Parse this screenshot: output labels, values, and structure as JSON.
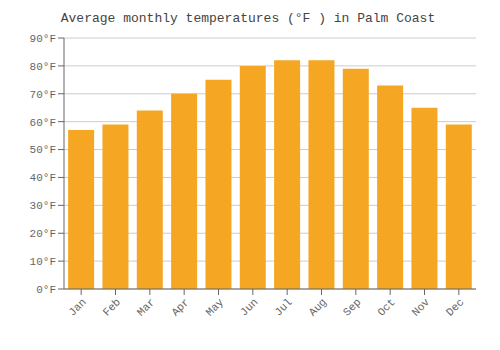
{
  "chart_data": {
    "type": "bar",
    "title": "Average monthly temperatures (°F ) in Palm Coast",
    "categories": [
      "Jan",
      "Feb",
      "Mar",
      "Apr",
      "May",
      "Jun",
      "Jul",
      "Aug",
      "Sep",
      "Oct",
      "Nov",
      "Dec"
    ],
    "values": [
      57,
      59,
      64,
      70,
      75,
      80,
      82,
      82,
      79,
      73,
      65,
      59
    ],
    "color": "#F5A623",
    "ylim": [
      0,
      90
    ],
    "yticks": [
      {
        "value": 0,
        "label": "0°F"
      },
      {
        "value": 10,
        "label": "10°F"
      },
      {
        "value": 20,
        "label": "20°F"
      },
      {
        "value": 30,
        "label": "30°F"
      },
      {
        "value": 40,
        "label": "40°F"
      },
      {
        "value": 50,
        "label": "50°F"
      },
      {
        "value": 60,
        "label": "60°F"
      },
      {
        "value": 70,
        "label": "70°F"
      },
      {
        "value": 80,
        "label": "80°F"
      },
      {
        "value": 90,
        "label": "90°F"
      }
    ],
    "grid": true
  }
}
